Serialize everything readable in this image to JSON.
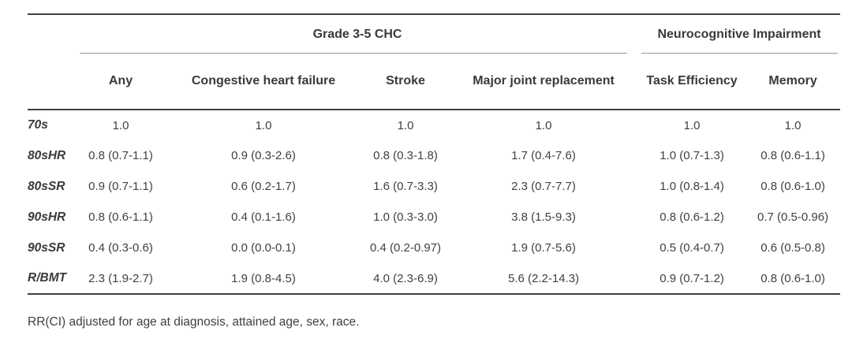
{
  "table": {
    "group_headers": [
      {
        "label": "Grade 3-5 CHC",
        "colspan": 4
      },
      {
        "label": "Neurocognitive Impairment",
        "colspan": 2
      }
    ],
    "columns": [
      "Any",
      "Congestive heart failure",
      "Stroke",
      "Major joint replacement",
      "Task Efficiency",
      "Memory"
    ],
    "rows": [
      {
        "label": "70s",
        "values": [
          "1.0",
          "1.0",
          "1.0",
          "1.0",
          "1.0",
          "1.0"
        ]
      },
      {
        "label": "80sHR",
        "values": [
          "0.8 (0.7-1.1)",
          "0.9 (0.3-2.6)",
          "0.8 (0.3-1.8)",
          "1.7 (0.4-7.6)",
          "1.0 (0.7-1.3)",
          "0.8 (0.6-1.1)"
        ]
      },
      {
        "label": "80sSR",
        "values": [
          "0.9 (0.7-1.1)",
          "0.6 (0.2-1.7)",
          "1.6 (0.7-3.3)",
          "2.3 (0.7-7.7)",
          "1.0 (0.8-1.4)",
          "0.8 (0.6-1.0)"
        ]
      },
      {
        "label": "90sHR",
        "values": [
          "0.8 (0.6-1.1)",
          "0.4 (0.1-1.6)",
          "1.0 (0.3-3.0)",
          "3.8 (1.5-9.3)",
          "0.8 (0.6-1.2)",
          "0.7 (0.5-0.96)"
        ]
      },
      {
        "label": "90sSR",
        "values": [
          "0.4 (0.3-0.6)",
          "0.0 (0.0-0.1)",
          "0.4 (0.2-0.97)",
          "1.9 (0.7-5.6)",
          "0.5 (0.4-0.7)",
          "0.6 (0.5-0.8)"
        ]
      },
      {
        "label": "R/BMT",
        "values": [
          "2.3 (1.9-2.7)",
          "1.9 (0.8-4.5)",
          "4.0 (2.3-6.9)",
          "5.6 (2.2-14.3)",
          "0.9 (0.7-1.2)",
          "0.8 (0.6-1.0)"
        ]
      }
    ],
    "footnote": "RR(CI) adjusted for age at diagnosis, attained age, sex, race."
  },
  "colors": {
    "text": "#3d3d3d",
    "rule_dark": "#3f3f3f",
    "rule_light": "#9a9a9a",
    "background": "#ffffff"
  }
}
